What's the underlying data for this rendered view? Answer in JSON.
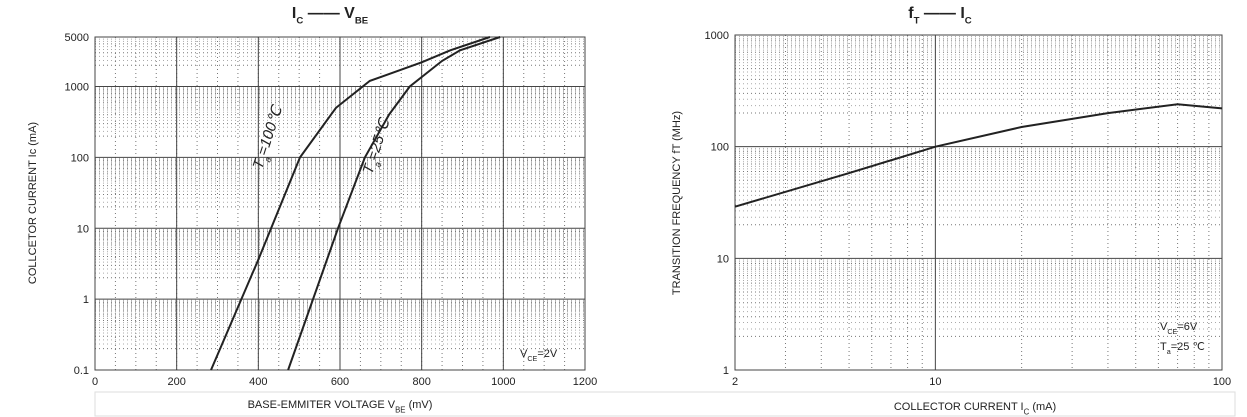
{
  "chart_data": [
    {
      "type": "line",
      "title": [
        {
          "text": "I",
          "sub": "C"
        },
        {
          "text": " —— "
        },
        {
          "text": "V",
          "sub": "BE"
        }
      ],
      "xlabel": [
        {
          "text": "BASE-EMMITER VOLTAGE V",
          "sub": "BE"
        },
        {
          "text": "    (mV)"
        }
      ],
      "ylabel": [
        {
          "text": "COLLCETOR CURRENT    Ic    (mA)"
        }
      ],
      "xlim": [
        0,
        1200
      ],
      "xticks": [
        0,
        200,
        400,
        600,
        800,
        1000,
        1200
      ],
      "xlog": false,
      "ylim": [
        0.1,
        5000
      ],
      "yticks": [
        0.1,
        1,
        10,
        100,
        1000,
        5000
      ],
      "ylog": true,
      "grid": true,
      "minor_grid": true,
      "series": [
        {
          "color": "#222222",
          "x": [
            284,
            400,
            502,
            590,
            673,
            800,
            870,
            967
          ],
          "values": [
            0.1,
            3.6,
            100,
            500,
            1200,
            2200,
            3250,
            5000
          ]
        },
        {
          "color": "#222222",
          "x": [
            473,
            595,
            661,
            720,
            771,
            850,
            894,
            992
          ],
          "values": [
            0.1,
            10,
            100,
            400,
            1000,
            2300,
            3250,
            5000
          ]
        }
      ],
      "annotations": [
        [
          {
            "text": "T",
            "sub": "a"
          },
          {
            "text": "=100℃"
          }
        ],
        [
          {
            "text": "T",
            "sub": "a"
          },
          {
            "text": "=25℃"
          }
        ],
        [
          {
            "text": "V",
            "sub": "CE"
          },
          {
            "text": "=2V"
          }
        ]
      ]
    },
    {
      "type": "line",
      "title": [
        {
          "text": "f",
          "sub": "T"
        },
        {
          "text": " —— "
        },
        {
          "text": "I",
          "sub": "C"
        }
      ],
      "xlabel": [
        {
          "text": "COLLECTOR CURRENT    I",
          "sub": "C"
        },
        {
          "text": "    (mA)"
        }
      ],
      "ylabel": [
        {
          "text": "TRANSITION FREQUENCY fT (MHz)"
        }
      ],
      "xlim": [
        2,
        100
      ],
      "xticks": [
        2,
        10,
        100
      ],
      "xlog": true,
      "ylim": [
        1,
        1000
      ],
      "yticks": [
        1,
        10,
        100,
        1000
      ],
      "ylog": true,
      "grid": true,
      "minor_grid": true,
      "series": [
        {
          "color": "#222222",
          "x": [
            2,
            5,
            10,
            20,
            40,
            70,
            100
          ],
          "values": [
            29,
            58,
            100,
            150,
            200,
            240,
            220
          ]
        }
      ],
      "annotations": [
        [
          {
            "text": "V",
            "sub": "CE"
          },
          {
            "text": "=6V"
          }
        ],
        [
          {
            "text": "T",
            "sub": "a"
          },
          {
            "text": "=25 ℃"
          }
        ]
      ]
    }
  ]
}
